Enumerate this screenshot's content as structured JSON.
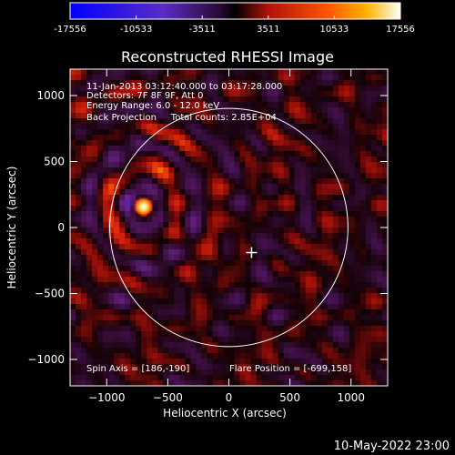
{
  "chart_data": {
    "type": "heatmap",
    "title": "Reconstructed RHESSI Image",
    "xlabel": "Heliocentric X (arcsec)",
    "ylabel": "Heliocentric Y (arcsec)",
    "xlim": [
      -1300,
      1300
    ],
    "ylim": [
      -1200,
      1200
    ],
    "xticks": [
      -1000,
      -500,
      0,
      500,
      1000
    ],
    "yticks": [
      -1000,
      -500,
      0,
      500,
      1000
    ],
    "colorbar": {
      "min": -17556,
      "max": 17556,
      "tick_values": [
        -17556,
        -10533,
        -3511,
        3511,
        10533,
        17556
      ],
      "tick_labels": [
        "-17556",
        "-10533",
        "-3511",
        "3511",
        "10533",
        "17556"
      ]
    },
    "annotations": [
      "11-Jan-2013 03:12:40.000 to 03:17:28.000",
      "Detectors: 7F 8F 9F, Att 0",
      "Energy Range: 6.0 - 12.0 keV",
      "Back Projection     Total counts: 2.85E+04"
    ],
    "spin_axis_label": "Spin Axis = [186,-190]",
    "flare_position_label": "Flare Position = [-699,158]",
    "spin_axis": [
      186,
      -190
    ],
    "flare_position": [
      -699,
      158
    ],
    "solar_disk_center": [
      0,
      0
    ],
    "solar_disk_radius_arcsec": 975,
    "footer": "10-May-2022 23:00",
    "colors": {
      "background": "#000000",
      "axes": "#ffffff",
      "colormap": [
        "#0000ff",
        "#5a2cc8",
        "#7a1f9a",
        "#000000",
        "#b0120a",
        "#ff5500",
        "#ffb400",
        "#ffffff"
      ]
    }
  }
}
